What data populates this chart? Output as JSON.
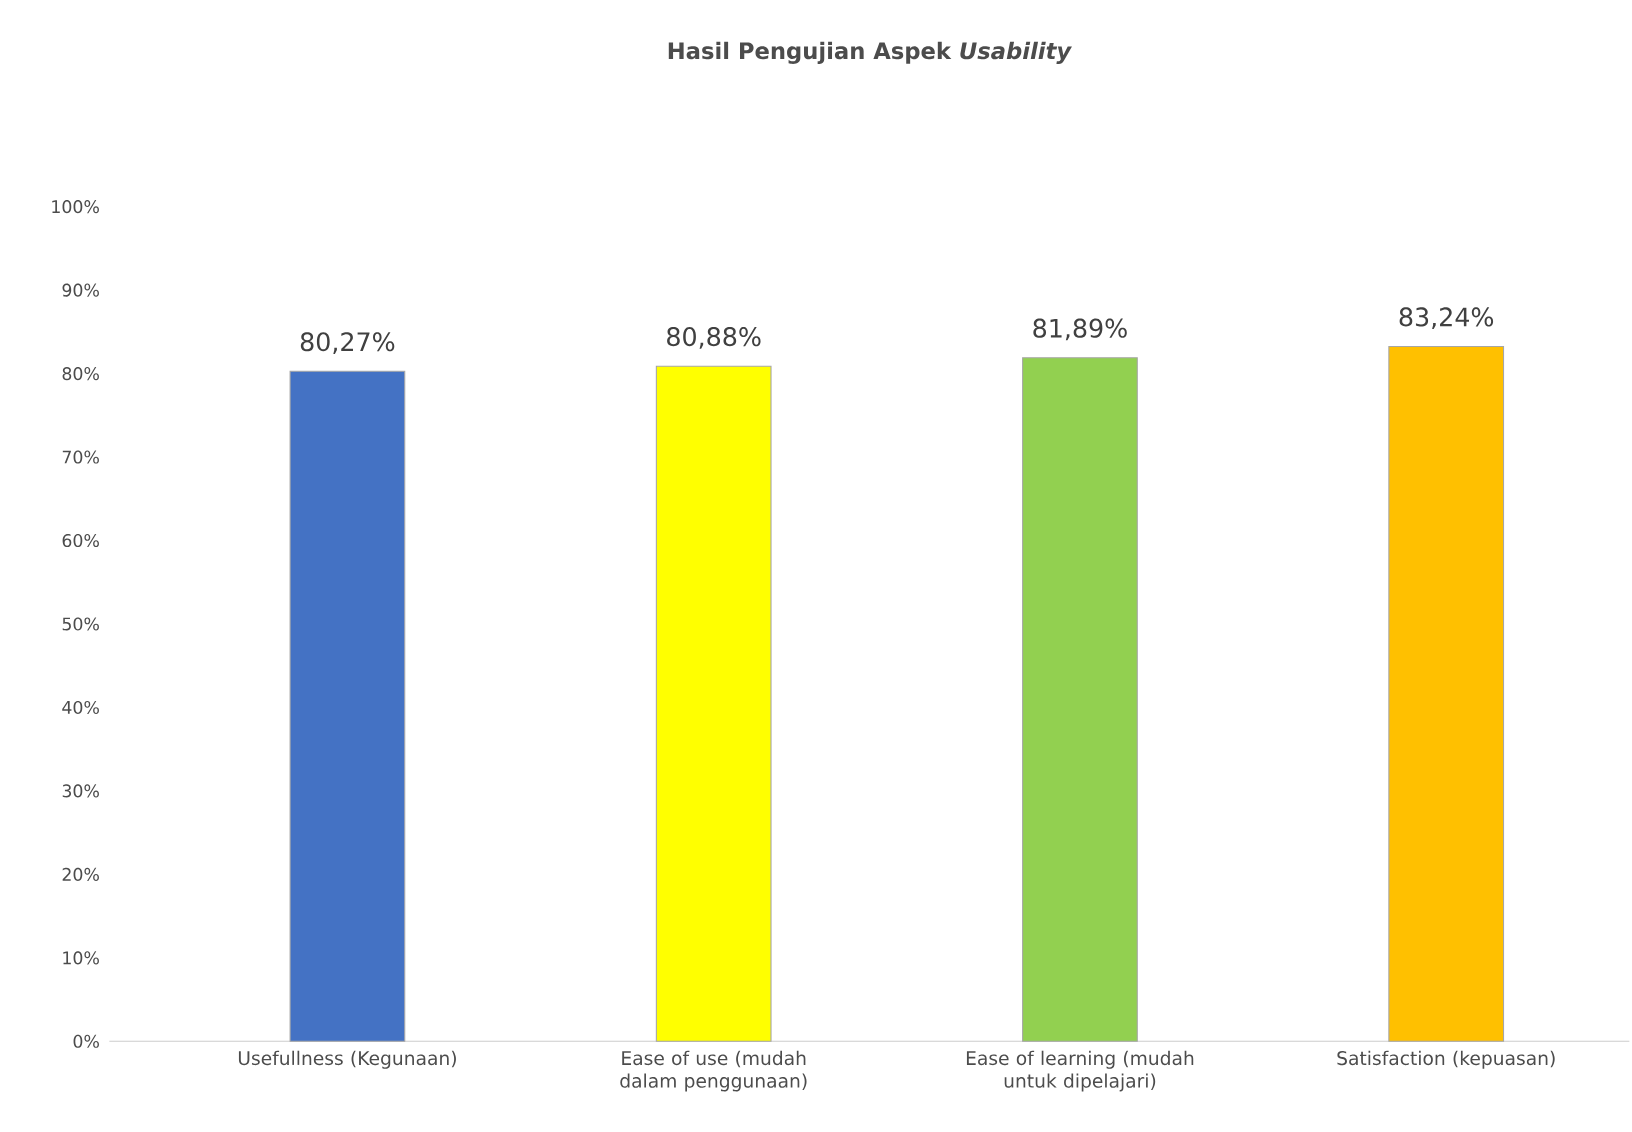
{
  "chart_data": {
    "type": "bar",
    "title": "Hasil Pengujian Aspek *Usability*",
    "categories": [
      "Usefullness (Kegunaan)",
      "Ease of use (mudah dalam penggunaan)",
      "Ease of learning (mudah untuk dipelajari)",
      "Satisfaction (kepuasan)"
    ],
    "values": [
      80.27,
      80.88,
      81.89,
      83.24
    ],
    "colors": [
      "#4472c4",
      "#ffff00",
      "#92d050",
      "#ffc000"
    ],
    "value_labels": [
      "80,27%",
      "80,88%",
      "81,89%",
      "83,24%"
    ],
    "ylim": [
      0,
      100
    ],
    "yticks": [
      {
        "value": 0,
        "label": "0%"
      },
      {
        "value": 10,
        "label": "10%"
      },
      {
        "value": 20,
        "label": "20%"
      },
      {
        "value": 30,
        "label": "30%"
      },
      {
        "value": 40,
        "label": "40%"
      },
      {
        "value": 50,
        "label": "50%"
      },
      {
        "value": 60,
        "label": "60%"
      },
      {
        "value": 70,
        "label": "70%"
      },
      {
        "value": 80,
        "label": "80%"
      },
      {
        "value": 90,
        "label": "90%"
      },
      {
        "value": 100,
        "label": "100%"
      }
    ]
  }
}
